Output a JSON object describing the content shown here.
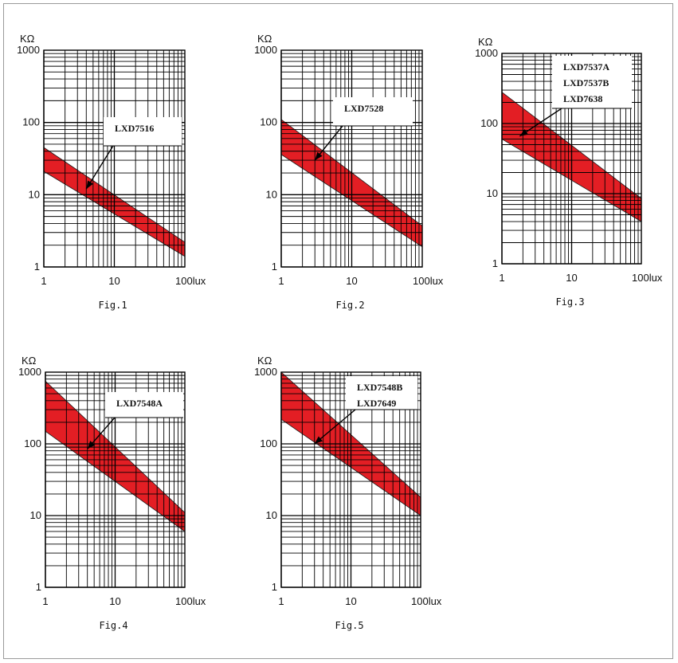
{
  "chart_data": [
    {
      "type": "area",
      "caption": "Fig.1",
      "y_unit": "KΩ",
      "x_unit_suffix": "lux",
      "x_scale": "log",
      "y_scale": "log",
      "xlim": [
        1,
        100
      ],
      "ylim": [
        1,
        1000
      ],
      "x_ticks": [
        "1",
        "10",
        "100lux"
      ],
      "y_ticks": [
        "1",
        "10",
        "100",
        "1000"
      ],
      "grid": true,
      "band_color": "#e31e24",
      "labels": [
        "LXD7516"
      ],
      "band": {
        "x": [
          1,
          100
        ],
        "upper": [
          45,
          2.2
        ],
        "lower": [
          21,
          1.4
        ]
      },
      "arrow_tip": [
        4,
        12
      ]
    },
    {
      "type": "area",
      "caption": "Fig.2",
      "y_unit": "KΩ",
      "x_unit_suffix": "lux",
      "x_scale": "log",
      "y_scale": "log",
      "xlim": [
        1,
        100
      ],
      "ylim": [
        1,
        1000
      ],
      "x_ticks": [
        "1",
        "10",
        "100lux"
      ],
      "y_ticks": [
        "1",
        "10",
        "100",
        "1000"
      ],
      "grid": true,
      "band_color": "#e31e24",
      "labels": [
        "LXD7528"
      ],
      "band": {
        "x": [
          1,
          100
        ],
        "upper": [
          110,
          3.7
        ],
        "lower": [
          36,
          1.9
        ]
      },
      "arrow_tip": [
        3,
        30
      ]
    },
    {
      "type": "area",
      "caption": "Fig.3",
      "y_unit": "KΩ",
      "x_unit_suffix": "lux",
      "x_scale": "log",
      "y_scale": "log",
      "xlim": [
        1,
        100
      ],
      "ylim": [
        1,
        1000
      ],
      "x_ticks": [
        "1",
        "10",
        "100lux"
      ],
      "y_ticks": [
        "1",
        "10",
        "100",
        "1000"
      ],
      "grid": true,
      "band_color": "#e31e24",
      "labels": [
        "LXD7537A",
        "LXD7537B",
        "LXD7638"
      ],
      "band": {
        "x": [
          1,
          100
        ],
        "upper": [
          280,
          8.5
        ],
        "lower": [
          60,
          4.0
        ]
      },
      "arrow_tip": [
        1.8,
        66
      ]
    },
    {
      "type": "area",
      "caption": "Fig.4",
      "y_unit": "KΩ",
      "x_unit_suffix": "lux",
      "x_scale": "log",
      "y_scale": "log",
      "xlim": [
        1,
        100
      ],
      "ylim": [
        1,
        1000
      ],
      "x_ticks": [
        "1",
        "10",
        "100lux"
      ],
      "y_ticks": [
        "1",
        "10",
        "100",
        "1000"
      ],
      "grid": true,
      "band_color": "#e31e24",
      "labels": [
        "LXD7548A"
      ],
      "band": {
        "x": [
          1,
          100
        ],
        "upper": [
          750,
          11
        ],
        "lower": [
          150,
          6
        ]
      },
      "arrow_tip": [
        4,
        85
      ]
    },
    {
      "type": "area",
      "caption": "Fig.5",
      "y_unit": "KΩ",
      "x_unit_suffix": "lux",
      "x_scale": "log",
      "y_scale": "log",
      "xlim": [
        1,
        100
      ],
      "ylim": [
        1,
        1000
      ],
      "x_ticks": [
        "1",
        "10",
        "100lux"
      ],
      "y_ticks": [
        "1",
        "10",
        "100",
        "1000"
      ],
      "grid": true,
      "band_color": "#e31e24",
      "labels": [
        "LXD7548B",
        "LXD7649"
      ],
      "band": {
        "x": [
          1,
          100
        ],
        "upper": [
          1000,
          18
        ],
        "lower": [
          220,
          10
        ]
      },
      "arrow_tip": [
        3,
        100
      ]
    }
  ]
}
